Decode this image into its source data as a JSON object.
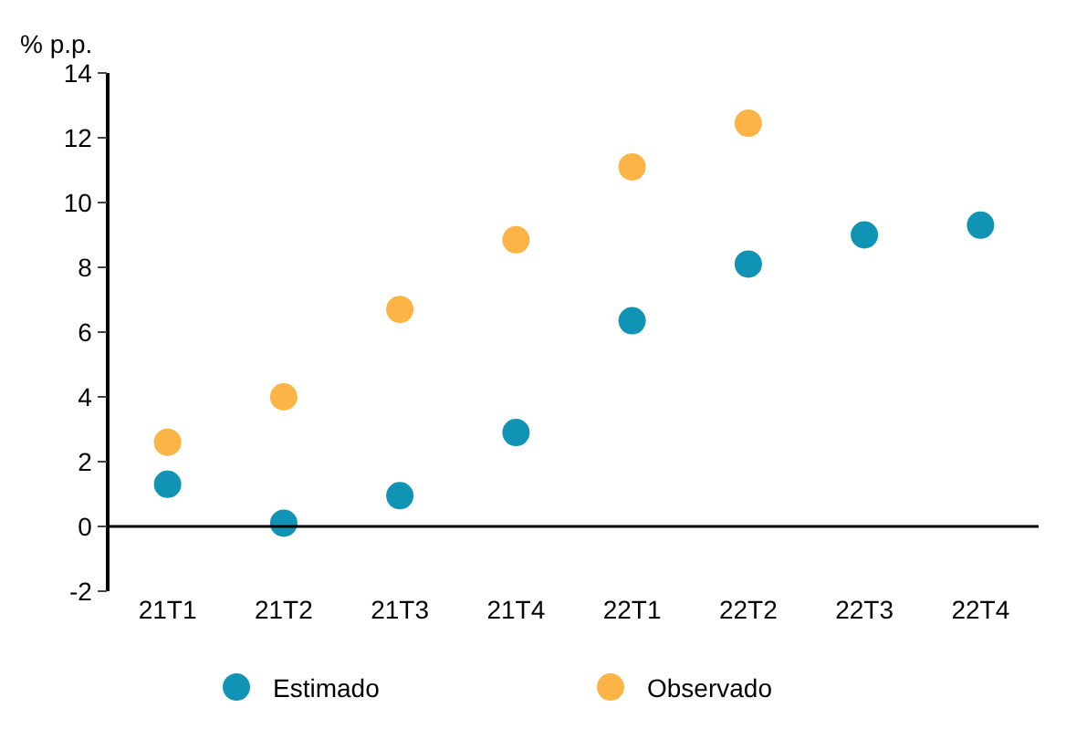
{
  "chart_data": {
    "type": "scatter",
    "ylabel": "% p.p.",
    "categories": [
      "21T1",
      "21T2",
      "21T3",
      "21T4",
      "22T1",
      "22T2",
      "22T3",
      "22T4"
    ],
    "series": [
      {
        "name": "Estimado",
        "color": "#1193b5",
        "values": [
          1.3,
          0.1,
          0.95,
          2.9,
          6.35,
          8.1,
          9.0,
          9.3
        ]
      },
      {
        "name": "Observado",
        "color": "#fbb445",
        "values": [
          2.6,
          4.0,
          6.7,
          8.85,
          11.1,
          12.45,
          null,
          null
        ]
      }
    ],
    "ylim": [
      -2,
      14
    ],
    "yticks": [
      -2,
      0,
      2,
      4,
      6,
      8,
      10,
      12,
      14
    ],
    "ref_lines": [
      {
        "axis": "y",
        "value": 0
      }
    ],
    "legend": "bottom",
    "marker": "circle"
  }
}
